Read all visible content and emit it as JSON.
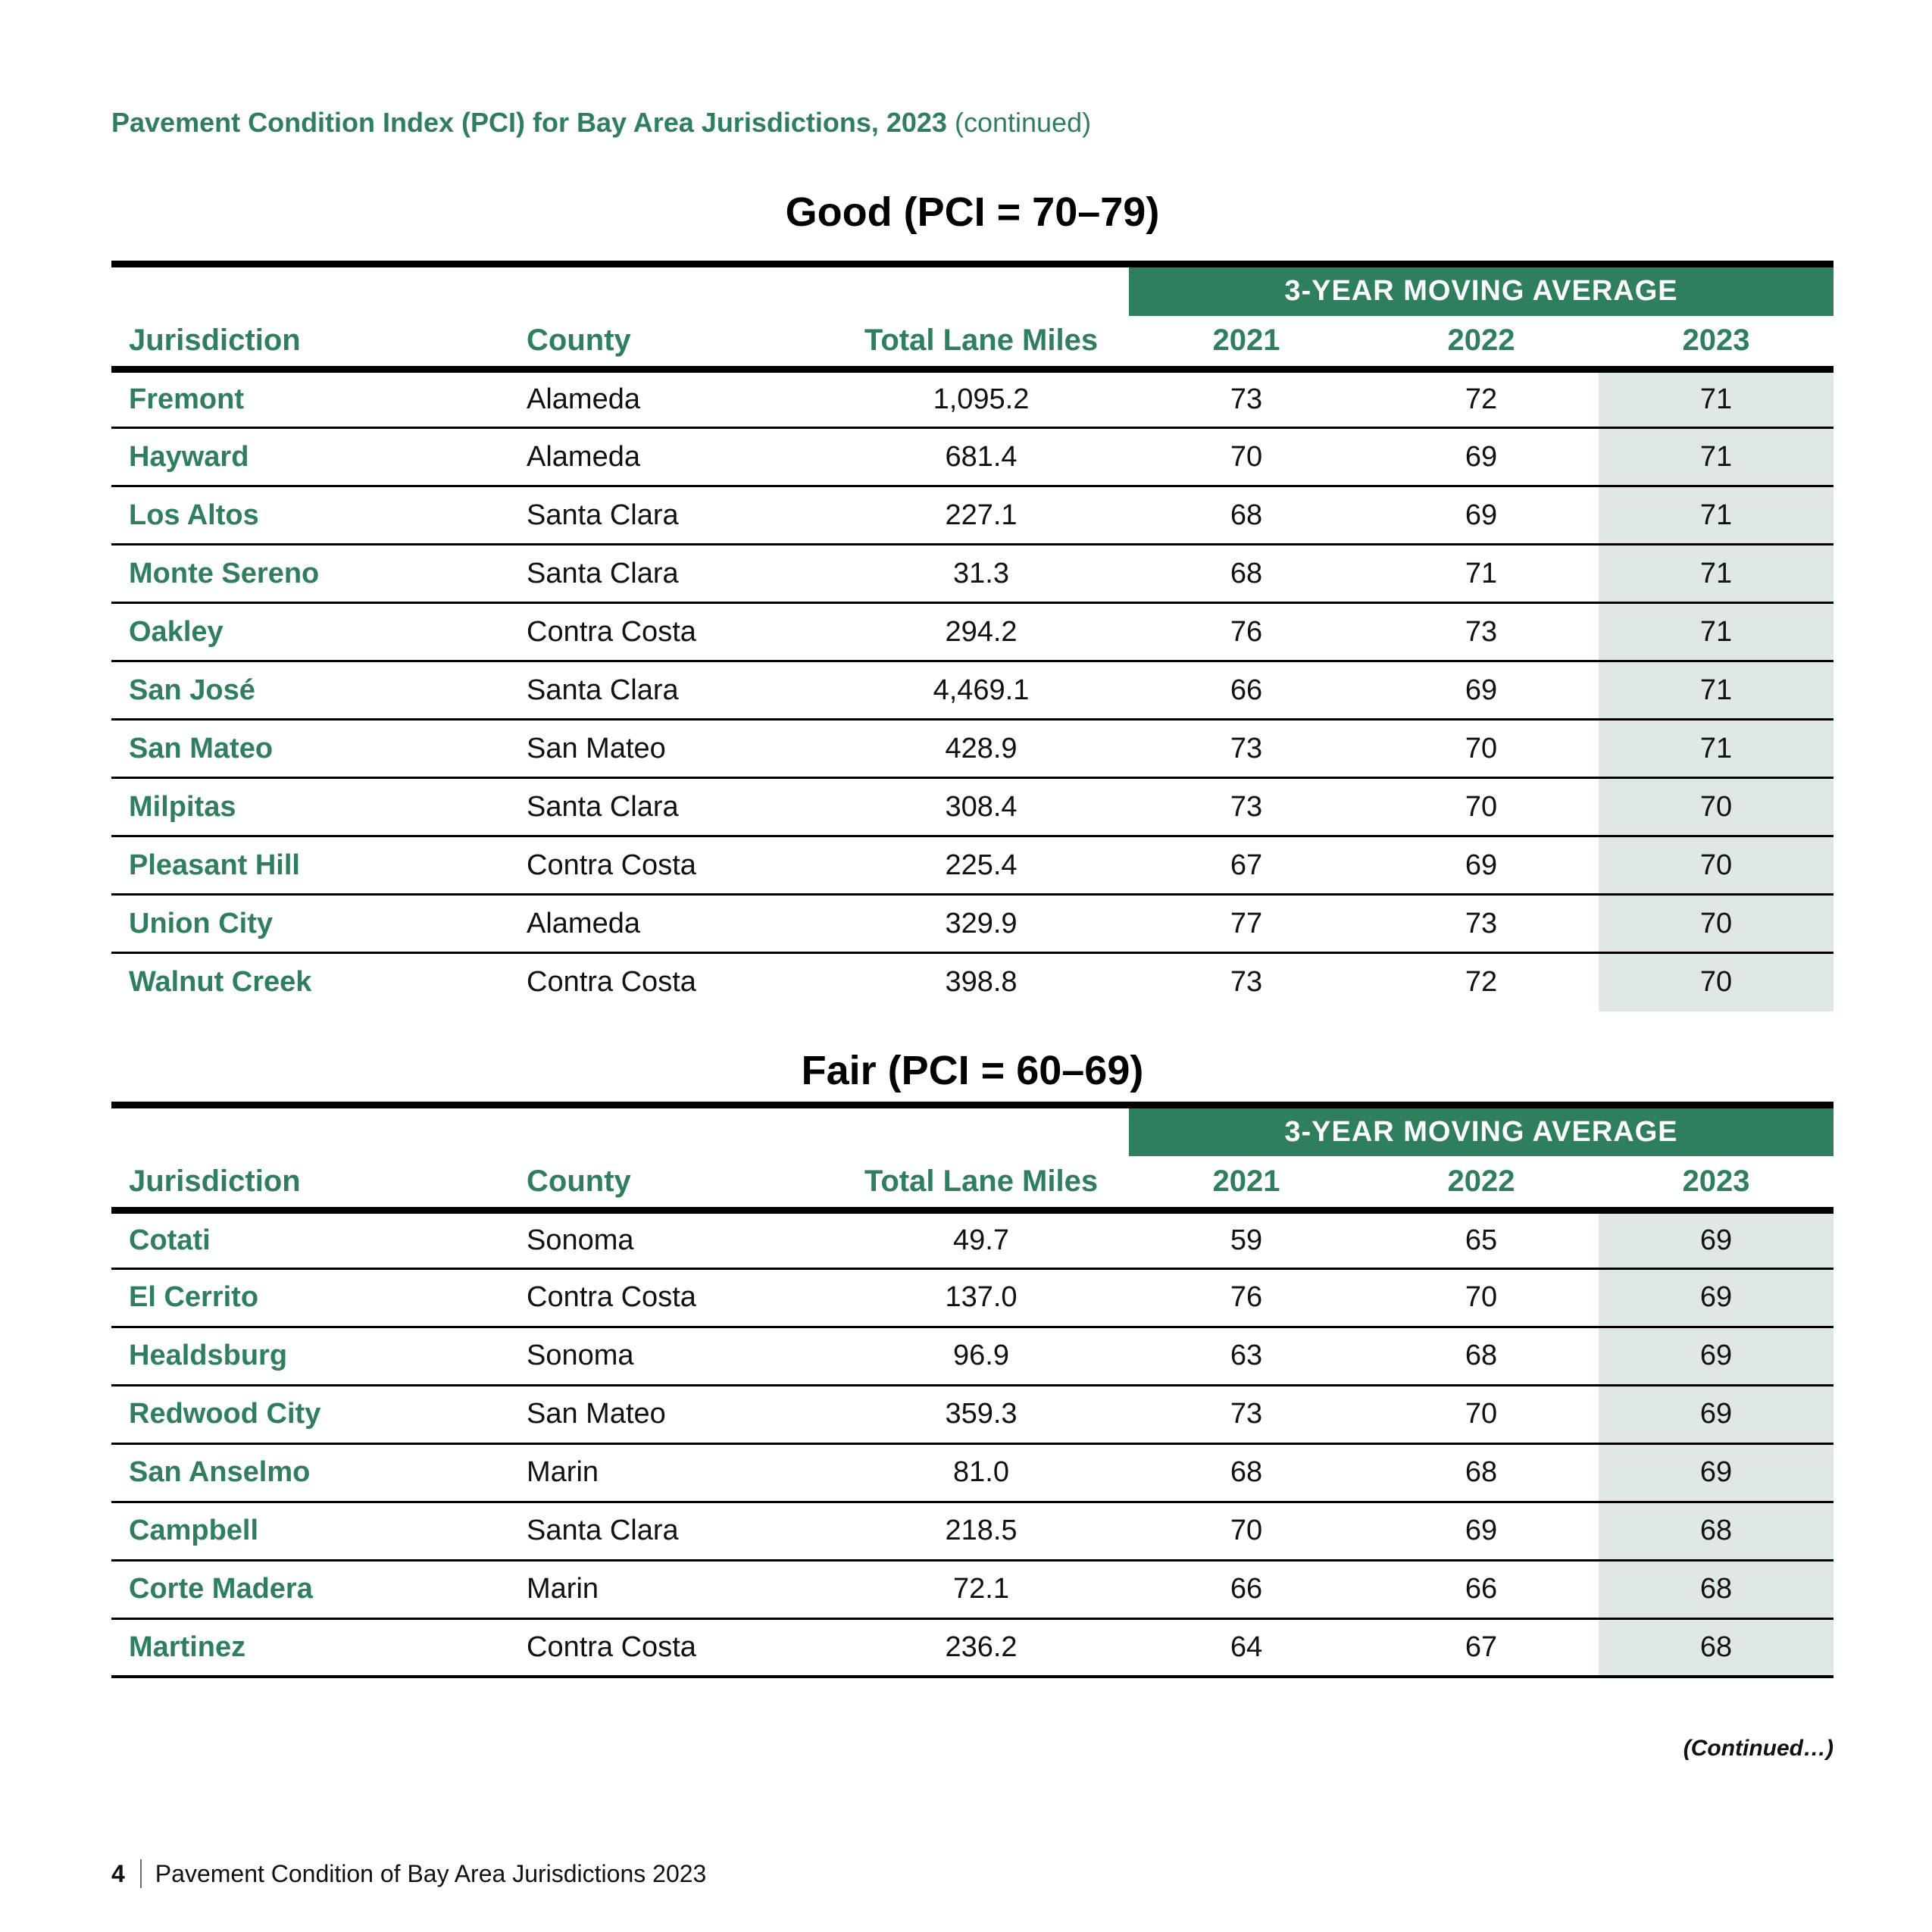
{
  "colors": {
    "green": "#2F7E5D",
    "shade": "#DFE8E2",
    "separator": "#000000"
  },
  "page": {
    "header_bold": "Pavement Condition Index (PCI) for Bay Area Jurisdictions, 2023",
    "header_suffix": "(continued)",
    "continued_note": "(Continued…)",
    "footer": {
      "page_number": "4",
      "title": "Pavement Condition of Bay Area Jurisdictions 2023"
    }
  },
  "tables": [
    {
      "title": "Good (PCI = 70–79)",
      "band_label": "3-YEAR MOVING AVERAGE",
      "columns": [
        "Jurisdiction",
        "County",
        "Total Lane Miles",
        "2021",
        "2022",
        "2023"
      ],
      "rows": [
        [
          "Fremont",
          "Alameda",
          "1,095.2",
          "73",
          "72",
          "71"
        ],
        [
          "Hayward",
          "Alameda",
          "681.4",
          "70",
          "69",
          "71"
        ],
        [
          "Los Altos",
          "Santa Clara",
          "227.1",
          "68",
          "69",
          "71"
        ],
        [
          "Monte Sereno",
          "Santa Clara",
          "31.3",
          "68",
          "71",
          "71"
        ],
        [
          "Oakley",
          "Contra Costa",
          "294.2",
          "76",
          "73",
          "71"
        ],
        [
          "San José",
          "Santa Clara",
          "4,469.1",
          "66",
          "69",
          "71"
        ],
        [
          "San Mateo",
          "San Mateo",
          "428.9",
          "73",
          "70",
          "71"
        ],
        [
          "Milpitas",
          "Santa Clara",
          "308.4",
          "73",
          "70",
          "70"
        ],
        [
          "Pleasant Hill",
          "Contra Costa",
          "225.4",
          "67",
          "69",
          "70"
        ],
        [
          "Union City",
          "Alameda",
          "329.9",
          "77",
          "73",
          "70"
        ],
        [
          "Walnut Creek",
          "Contra Costa",
          "398.8",
          "73",
          "72",
          "70"
        ]
      ]
    },
    {
      "title": "Fair (PCI = 60–69)",
      "band_label": "3-YEAR MOVING AVERAGE",
      "columns": [
        "Jurisdiction",
        "County",
        "Total Lane Miles",
        "2021",
        "2022",
        "2023"
      ],
      "rows": [
        [
          "Cotati",
          "Sonoma",
          "49.7",
          "59",
          "65",
          "69"
        ],
        [
          "El Cerrito",
          "Contra Costa",
          "137.0",
          "76",
          "70",
          "69"
        ],
        [
          "Healdsburg",
          "Sonoma",
          "96.9",
          "63",
          "68",
          "69"
        ],
        [
          "Redwood City",
          "San Mateo",
          "359.3",
          "73",
          "70",
          "69"
        ],
        [
          "San Anselmo",
          "Marin",
          "81.0",
          "68",
          "68",
          "69"
        ],
        [
          "Campbell",
          "Santa Clara",
          "218.5",
          "70",
          "69",
          "68"
        ],
        [
          "Corte Madera",
          "Marin",
          "72.1",
          "66",
          "66",
          "68"
        ],
        [
          "Martinez",
          "Contra Costa",
          "236.2",
          "64",
          "67",
          "68"
        ]
      ]
    }
  ]
}
